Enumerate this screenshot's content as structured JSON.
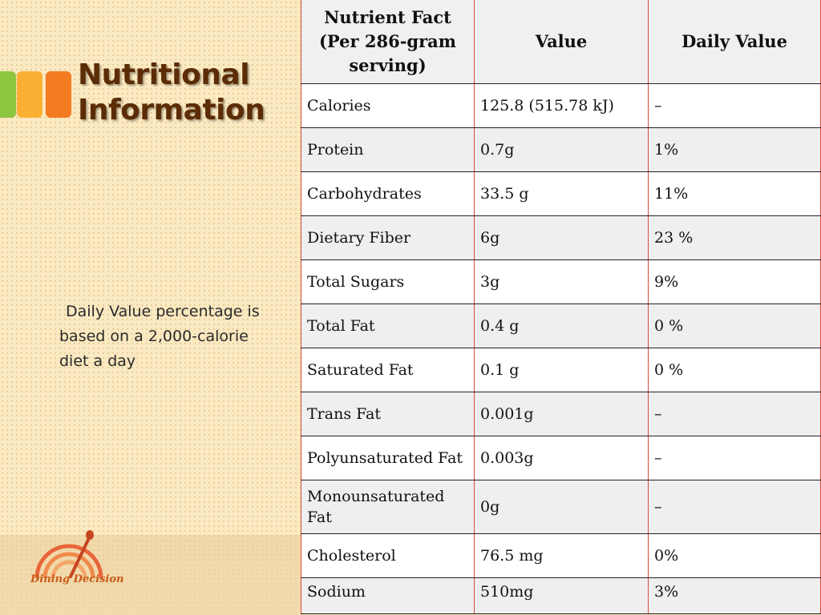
{
  "slide": {
    "title_line1": "Nutritional",
    "title_line2": "Information",
    "note": "Daily Value percentage is based on a 2,000-calorie diet a day",
    "logo_text": "Dining Decision",
    "colors": {
      "background": "#fbe9c1",
      "title": "#5b2c06",
      "accent_green": "#8dc63f",
      "accent_yellow": "#fbb034",
      "accent_orange": "#f47b20",
      "table_border_red": "#d84a3a"
    }
  },
  "table": {
    "headers": [
      "Nutrient Fact (Per 286-gram serving)",
      "Value",
      "Daily Value"
    ],
    "rows": [
      [
        "Calories",
        "125.8 (515.78 kJ)",
        "–"
      ],
      [
        "Protein",
        "0.7g",
        "1%"
      ],
      [
        "Carbohydrates",
        "33.5 g",
        "11%"
      ],
      [
        "Dietary Fiber",
        "6g",
        "23 %"
      ],
      [
        "Total Sugars",
        "3g",
        "9%"
      ],
      [
        "Total Fat",
        "0.4 g",
        "0 %"
      ],
      [
        "Saturated Fat",
        "0.1 g",
        "0 %"
      ],
      [
        "Trans Fat",
        "0.001g",
        "–"
      ],
      [
        "Polyunsaturated Fat",
        "0.003g",
        "–"
      ],
      [
        "Monounsaturated Fat",
        "0g",
        "–"
      ],
      [
        "Cholesterol",
        "76.5 mg",
        "0%"
      ],
      [
        "Sodium",
        "510mg",
        "3%"
      ]
    ]
  }
}
